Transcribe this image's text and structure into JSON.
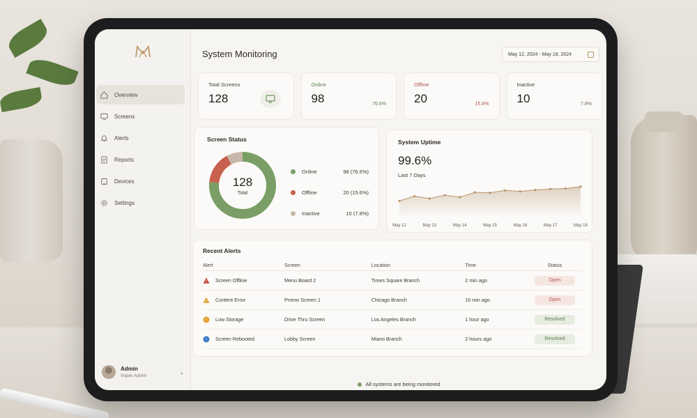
{
  "app": {
    "title": "System Monitoring",
    "date_range": "May 12, 2024 - May 18, 2024"
  },
  "sidebar": {
    "items": [
      {
        "label": "Overview",
        "icon": "home-icon",
        "active": true
      },
      {
        "label": "Screens",
        "icon": "monitor-icon",
        "active": false
      },
      {
        "label": "Alerts",
        "icon": "bell-icon",
        "active": false
      },
      {
        "label": "Reports",
        "icon": "document-icon",
        "active": false
      },
      {
        "label": "Devices",
        "icon": "device-icon",
        "active": false
      },
      {
        "label": "Settings",
        "icon": "gear-icon",
        "active": false
      }
    ],
    "user": {
      "name": "Admin",
      "role": "Super Admin"
    }
  },
  "kpis": [
    {
      "label": "Total Screens",
      "value": "128",
      "pct": ""
    },
    {
      "label": "Online",
      "value": "98",
      "pct": "76.6%"
    },
    {
      "label": "Offline",
      "value": "20",
      "pct": "15.6%"
    },
    {
      "label": "Inactive",
      "value": "10",
      "pct": "7.8%"
    }
  ],
  "colors": {
    "online": "#7a9e65",
    "offline": "#c8604f",
    "inactive": "#c6b8a8",
    "accent": "#b89060"
  },
  "screen_status": {
    "title": "Screen Status",
    "total": "128",
    "total_label": "Total",
    "legend": [
      {
        "label": "Online",
        "value": "98 (76.6%)"
      },
      {
        "label": "Offline",
        "value": "20 (15.6%)"
      },
      {
        "label": "Inactive",
        "value": "10 (7.8%)"
      }
    ]
  },
  "uptime": {
    "title": "System Uptime",
    "value": "99.6%",
    "sub": "Last 7 Days"
  },
  "chart_data": [
    {
      "type": "pie",
      "categories": [
        "Online",
        "Offline",
        "Inactive"
      ],
      "values": [
        98,
        20,
        10
      ]
    },
    {
      "type": "area",
      "categories": [
        "May 12",
        "May 13",
        "May 14",
        "May 15",
        "May 16",
        "May 17",
        "May 18"
      ],
      "x": [
        0,
        0.5,
        1,
        1.5,
        2,
        2.5,
        3,
        3.5,
        4,
        4.5,
        5,
        5.5,
        6
      ],
      "values": [
        99.3,
        99.4,
        99.35,
        99.42,
        99.38,
        99.48,
        99.47,
        99.52,
        99.5,
        99.53,
        99.55,
        99.56,
        99.6
      ],
      "ylim": [
        99.0,
        99.7
      ],
      "grid": false
    }
  ],
  "alerts": {
    "title": "Recent Alerts",
    "columns": [
      "Alert",
      "Screen",
      "Location",
      "Time",
      "Status"
    ],
    "rows": [
      {
        "alert": "Screen Offline",
        "icon": "warning-red-icon",
        "screen": "Menu Board 2",
        "location": "Times Square Branch",
        "time": "2 min ago",
        "status": "Open"
      },
      {
        "alert": "Content Error",
        "icon": "warning-yellow-icon",
        "screen": "Promo Screen 1",
        "location": "Chicago Branch",
        "time": "10 min ago",
        "status": "Open"
      },
      {
        "alert": "Low Storage",
        "icon": "info-orange-icon",
        "screen": "Drive Thru Screen",
        "location": "Los Angeles Branch",
        "time": "1 hour ago",
        "status": "Resolved"
      },
      {
        "alert": "Screen Rebooted",
        "icon": "info-blue-icon",
        "screen": "Lobby Screen",
        "location": "Miami Branch",
        "time": "2 hours ago",
        "status": "Resolved"
      }
    ]
  },
  "footer": {
    "text": "All systems are being monitored"
  }
}
